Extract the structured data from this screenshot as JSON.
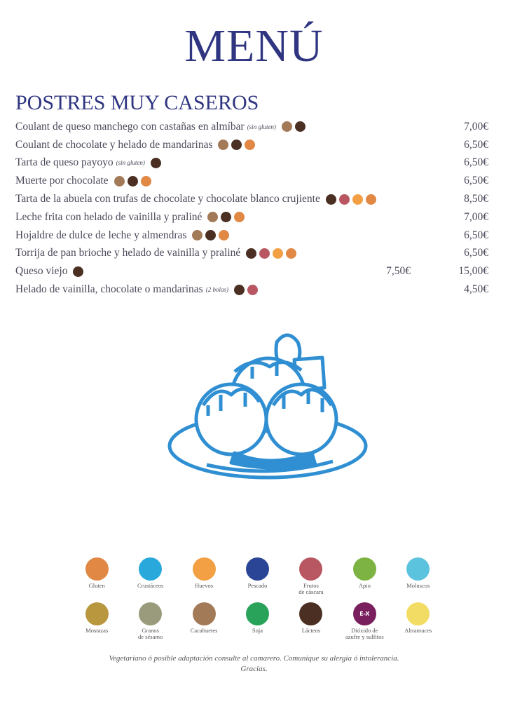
{
  "title": "MENÚ",
  "section": "POSTRES MUY CASEROS",
  "colors": {
    "cacahuetes": "#a37a57",
    "lacteos": "#4a2f22",
    "gluten": "#e08844",
    "frutos": "#b85762",
    "huevos": "#f2a043"
  },
  "items": [
    {
      "name": "Coulant de queso manchego con castañas en almíbar",
      "note": "(sin gluten)",
      "allergens": [
        "cacahuetes",
        "lacteos"
      ],
      "price": "7,00€"
    },
    {
      "name": "Coulant de chocolate y helado de mandarinas",
      "note": "",
      "allergens": [
        "cacahuetes",
        "lacteos",
        "gluten"
      ],
      "price": "6,50€"
    },
    {
      "name": "Tarta de queso payoyo",
      "note": "(sin gluten)",
      "allergens": [
        "lacteos"
      ],
      "price": "6,50€"
    },
    {
      "name": "Muerte por chocolate",
      "note": "",
      "allergens": [
        "cacahuetes",
        "lacteos",
        "gluten"
      ],
      "price": "6,50€"
    },
    {
      "name": "Tarta de la abuela con trufas de chocolate y chocolate blanco crujiente",
      "note": "",
      "allergens": [
        "lacteos",
        "frutos",
        "huevos",
        "gluten"
      ],
      "price": "8,50€"
    },
    {
      "name": "Leche frita con helado de vainilla y praliné",
      "note": "",
      "allergens": [
        "cacahuetes",
        "lacteos",
        "gluten"
      ],
      "price": "7,00€"
    },
    {
      "name": "Hojaldre de dulce de leche y almendras",
      "note": "",
      "allergens": [
        "cacahuetes",
        "lacteos",
        "gluten"
      ],
      "price": "6,50€"
    },
    {
      "name": "Torrija de pan brioche y helado de vainilla y praliné",
      "note": "",
      "allergens": [
        "lacteos",
        "frutos",
        "huevos",
        "gluten"
      ],
      "price": "6,50€"
    },
    {
      "name": "Queso viejo",
      "note": "",
      "allergens": [
        "lacteos"
      ],
      "price_half": "7,50€",
      "price": "15,00€"
    },
    {
      "name": "Helado de vainilla, chocolate o mandarinas",
      "note": "(2 bolas)",
      "allergens": [
        "lacteos",
        "frutos"
      ],
      "price": "4,50€"
    }
  ],
  "legend": [
    {
      "label": "Gluten",
      "color": "#e08844",
      "icon": "wheat-icon"
    },
    {
      "label": "Crustáceos",
      "color": "#29a8dc",
      "icon": "crab-icon"
    },
    {
      "label": "Huevos",
      "color": "#f2a043",
      "icon": "eggs-icon"
    },
    {
      "label": "Pescado",
      "color": "#2a4595",
      "icon": "fish-icon"
    },
    {
      "label": "Frutos\nde cáscara",
      "color": "#b85762",
      "icon": "walnut-icon"
    },
    {
      "label": "Apio",
      "color": "#7cb342",
      "icon": "celery-icon"
    },
    {
      "label": "Moluscos",
      "color": "#5bc3dd",
      "icon": "shell-icon"
    },
    {
      "label": "Mostazas",
      "color": "#b8973e",
      "icon": "mustard-icon"
    },
    {
      "label": "Granos\nde sésamo",
      "color": "#9a9a7c",
      "icon": "sesame-icon"
    },
    {
      "label": "Cacahuetes",
      "color": "#a37a57",
      "icon": "peanut-icon"
    },
    {
      "label": "Soja",
      "color": "#2aa35a",
      "icon": "soy-icon"
    },
    {
      "label": "Lácteos",
      "color": "#4a2f22",
      "icon": "milk-jug-icon"
    },
    {
      "label": "Dióxido de\nazufre y sulfitos",
      "color": "#7a1f5e",
      "icon": "sulphites-icon",
      "badge": "E-X"
    },
    {
      "label": "Altramuces",
      "color": "#f3dc63",
      "icon": "lupin-icon"
    }
  ],
  "footer": {
    "line1": "Vegetariano ó posible adaptación consulte al camarero. Comunique su alergia ó intolerancia.",
    "line2": "Gracias."
  },
  "illustration": {
    "color": "#2f8fd2",
    "icon": "ice-cream-bowl-icon"
  }
}
